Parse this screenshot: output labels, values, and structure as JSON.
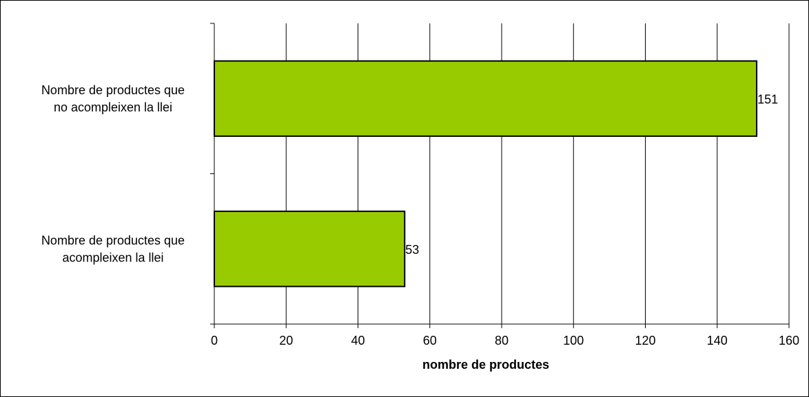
{
  "chart_data": {
    "type": "bar",
    "orientation": "horizontal",
    "categories": [
      [
        "Nombre de productes que",
        "no acompleixen la llei"
      ],
      [
        "Nombre de productes que",
        "acompleixen la llei"
      ]
    ],
    "values": [
      151,
      53
    ],
    "data_labels": [
      "151",
      "53"
    ],
    "xlabel": "nombre de productes",
    "ylabel": "",
    "xlim": [
      0,
      160
    ],
    "xticks": [
      "0",
      "20",
      "40",
      "60",
      "80",
      "100",
      "120",
      "140",
      "160"
    ],
    "grid": "vertical",
    "legend": "none",
    "bar_color": "#99cc00",
    "bar_edge_color": "#000000"
  }
}
